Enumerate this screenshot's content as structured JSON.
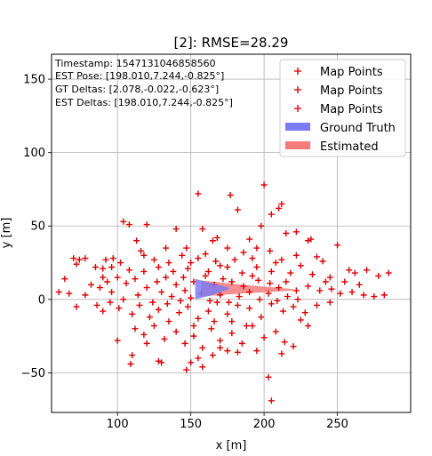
{
  "chart_data": {
    "type": "scatter",
    "title": "[2]: RMSE=28.29",
    "xlabel": "x [m]",
    "ylabel": "y [m]",
    "xlim": [
      55,
      300
    ],
    "ylim": [
      -77,
      167
    ],
    "xticks": [
      100,
      150,
      200,
      250
    ],
    "yticks": [
      -50,
      0,
      50,
      100,
      150
    ],
    "grid": true,
    "legend_position": "top-right",
    "info_lines": [
      "Timestamp: 1547131046858560",
      "EST Pose: [198.010,7.244,-0.825°]",
      "GT Deltas: [2.078,-0.022,-0.623°]",
      "EST Deltas: [198.010,7.244,-0.825°]"
    ],
    "legend": [
      {
        "label": "Map Points",
        "marker": "plus",
        "color": "#e41a1c"
      },
      {
        "label": "Map Points",
        "marker": "plus",
        "color": "#e41a1c"
      },
      {
        "label": "Map Points",
        "marker": "plus",
        "color": "#e41a1c"
      },
      {
        "label": "Ground Truth",
        "marker": "patch",
        "color": "#7b7bf2"
      },
      {
        "label": "Estimated",
        "marker": "patch",
        "color": "#f27b7b"
      }
    ],
    "series": [
      {
        "name": "Map Points",
        "marker": "plus",
        "color": "#dd0000",
        "points": [
          [
            155,
            72
          ],
          [
            177,
            71
          ],
          [
            200,
            78
          ],
          [
            212,
            65
          ],
          [
            210,
            62
          ],
          [
            205,
            58
          ],
          [
            182,
            61
          ],
          [
            104,
            53
          ],
          [
            108,
            51
          ],
          [
            120,
            51
          ],
          [
            140,
            48
          ],
          [
            158,
            48
          ],
          [
            198,
            50
          ],
          [
            215,
            45
          ],
          [
            222,
            46
          ],
          [
            168,
            42
          ],
          [
            165,
            40
          ],
          [
            190,
            41
          ],
          [
            230,
            40
          ],
          [
            232,
            41
          ],
          [
            250,
            37
          ],
          [
            113,
            40
          ],
          [
            133,
            35
          ],
          [
            147,
            35
          ],
          [
            116,
            33
          ],
          [
            70,
            28
          ],
          [
            74,
            27
          ],
          [
            78,
            28
          ],
          [
            92,
            27
          ],
          [
            97,
            28
          ],
          [
            102,
            25
          ],
          [
            125,
            27
          ],
          [
            135,
            25
          ],
          [
            150,
            25
          ],
          [
            180,
            27
          ],
          [
            175,
            22
          ],
          [
            195,
            22
          ],
          [
            208,
            25
          ],
          [
            225,
            23
          ],
          [
            240,
            26
          ],
          [
            258,
            20
          ],
          [
            262,
            18
          ],
          [
            270,
            20
          ],
          [
            285,
            18
          ],
          [
            72,
            24
          ],
          [
            85,
            22
          ],
          [
            90,
            21
          ],
          [
            96,
            22
          ],
          [
            108,
            20
          ],
          [
            118,
            19
          ],
          [
            128,
            22
          ],
          [
            138,
            19
          ],
          [
            148,
            21
          ],
          [
            162,
            19
          ],
          [
            170,
            23
          ],
          [
            185,
            18
          ],
          [
            192,
            16
          ],
          [
            205,
            19
          ],
          [
            218,
            18
          ],
          [
            233,
            17
          ],
          [
            245,
            15
          ],
          [
            255,
            12
          ],
          [
            265,
            10
          ],
          [
            278,
            16
          ],
          [
            64,
            14
          ],
          [
            67,
            4
          ],
          [
            72,
            -5
          ],
          [
            78,
            3
          ],
          [
            82,
            10
          ],
          [
            88,
            8
          ],
          [
            93,
            12
          ],
          [
            100,
            15
          ],
          [
            106,
            11
          ],
          [
            112,
            14
          ],
          [
            120,
            8
          ],
          [
            127,
            12
          ],
          [
            133,
            15
          ],
          [
            140,
            10
          ],
          [
            146,
            6
          ],
          [
            152,
            12
          ],
          [
            160,
            16
          ],
          [
            166,
            10
          ],
          [
            172,
            14
          ],
          [
            178,
            12
          ],
          [
            186,
            9
          ],
          [
            196,
            13
          ],
          [
            204,
            11
          ],
          [
            210,
            8
          ],
          [
            215,
            12
          ],
          [
            222,
            6
          ],
          [
            230,
            9
          ],
          [
            238,
            6
          ],
          [
            246,
            7
          ],
          [
            252,
            4
          ],
          [
            260,
            5
          ],
          [
            268,
            3
          ],
          [
            275,
            2
          ],
          [
            282,
            3
          ],
          [
            60,
            5
          ],
          [
            86,
            -4
          ],
          [
            90,
            -8
          ],
          [
            95,
            -2
          ],
          [
            101,
            -6
          ],
          [
            110,
            -10
          ],
          [
            115,
            -4
          ],
          [
            122,
            -12
          ],
          [
            128,
            -7
          ],
          [
            134,
            -3
          ],
          [
            142,
            -9
          ],
          [
            148,
            -5
          ],
          [
            155,
            -13
          ],
          [
            162,
            -8
          ],
          [
            168,
            -2
          ],
          [
            175,
            -10
          ],
          [
            182,
            -4
          ],
          [
            190,
            -6
          ],
          [
            198,
            -12
          ],
          [
            205,
            -3
          ],
          [
            213,
            -8
          ],
          [
            220,
            -5
          ],
          [
            228,
            -9
          ],
          [
            236,
            -4
          ],
          [
            245,
            -2
          ],
          [
            112,
            -20
          ],
          [
            118,
            -24
          ],
          [
            125,
            -18
          ],
          [
            132,
            -27
          ],
          [
            140,
            -22
          ],
          [
            146,
            -30
          ],
          [
            152,
            -25
          ],
          [
            158,
            -33
          ],
          [
            164,
            -20
          ],
          [
            170,
            -28
          ],
          [
            178,
            -23
          ],
          [
            185,
            -30
          ],
          [
            192,
            -18
          ],
          [
            200,
            -26
          ],
          [
            208,
            -22
          ],
          [
            214,
            -29
          ],
          [
            220,
            -32
          ],
          [
            225,
            -14
          ],
          [
            230,
            -18
          ],
          [
            110,
            -38
          ],
          [
            109,
            -44
          ],
          [
            128,
            -42
          ],
          [
            150,
            -43
          ],
          [
            155,
            -40
          ],
          [
            158,
            -46
          ],
          [
            165,
            -38
          ],
          [
            175,
            -35
          ],
          [
            182,
            -36
          ],
          [
            195,
            -35
          ],
          [
            212,
            -37
          ],
          [
            203,
            -53
          ],
          [
            205,
            -69
          ],
          [
            130,
            -43
          ],
          [
            147,
            -48
          ],
          [
            170,
            -33
          ],
          [
            120,
            -30
          ],
          [
            100,
            -28
          ],
          [
            118,
            30
          ],
          [
            144,
            30
          ],
          [
            160,
            31
          ],
          [
            186,
            32
          ],
          [
            204,
            33
          ],
          [
            222,
            30
          ],
          [
            236,
            29
          ],
          [
            130,
            5
          ],
          [
            137,
            2
          ],
          [
            143,
            -1
          ],
          [
            150,
            1
          ],
          [
            157,
            4
          ],
          [
            163,
            -1
          ],
          [
            170,
            3
          ],
          [
            176,
            -2
          ],
          [
            183,
            2
          ],
          [
            190,
            5
          ],
          [
            197,
            0
          ],
          [
            203,
            4
          ],
          [
            209,
            -1
          ],
          [
            216,
            2
          ],
          [
            223,
            0
          ],
          [
            90,
            15
          ],
          [
            96,
            5
          ],
          [
            104,
            0
          ],
          [
            114,
            3
          ],
          [
            124,
            -2
          ],
          [
            135,
            -15
          ],
          [
            145,
            15
          ],
          [
            175,
            35
          ],
          [
            195,
            35
          ],
          [
            155,
            28
          ],
          [
            167,
            26
          ],
          [
            192,
            28
          ],
          [
            212,
            27
          ],
          [
            178,
            -15
          ],
          [
            188,
            -18
          ],
          [
            166,
            -15
          ],
          [
            152,
            -18
          ],
          [
            242,
            12
          ]
        ]
      }
    ],
    "ground_truth": {
      "color": "#7b7bf2",
      "points": [
        [
          153,
          14
        ],
        [
          165,
          11
        ],
        [
          176,
          8
        ],
        [
          176,
          7
        ],
        [
          165,
          3
        ],
        [
          153,
          0
        ]
      ]
    },
    "estimated": {
      "color": "#f27b7b",
      "points": [
        [
          157,
          13
        ],
        [
          185,
          10
        ],
        [
          220,
          7
        ],
        [
          220,
          6
        ],
        [
          185,
          4
        ],
        [
          157,
          2
        ]
      ]
    }
  }
}
